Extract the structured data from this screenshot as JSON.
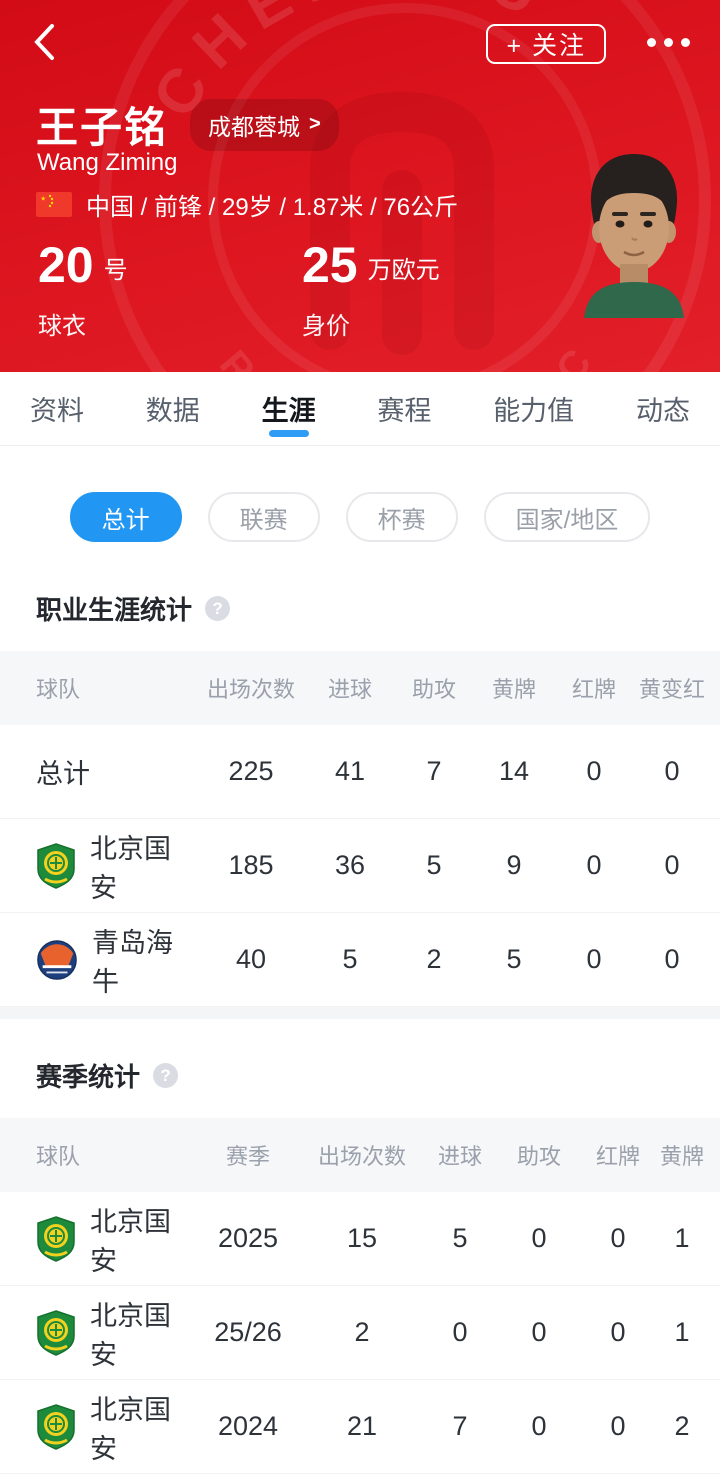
{
  "header": {
    "follow_button": "+ 关注",
    "player_name": "王子铭",
    "player_name_en": "Wang Ziming",
    "team_chip": "成都蓉城",
    "team_chip_arrow": ">",
    "info_line": "中国 / 前锋 / 29岁 / 1.87米 / 76公斤",
    "jersey_number": "20",
    "jersey_unit": "号",
    "jersey_label": "球衣",
    "value_number": "25",
    "value_unit": "万欧元",
    "value_label": "身价",
    "watermark_top": "CHENGDU",
    "watermark_bottom": "RONGCHENG FC"
  },
  "icons": {
    "help": "?"
  },
  "tabs": [
    {
      "label": "资料",
      "active": false
    },
    {
      "label": "数据",
      "active": false
    },
    {
      "label": "生涯",
      "active": true
    },
    {
      "label": "赛程",
      "active": false
    },
    {
      "label": "能力值",
      "active": false
    },
    {
      "label": "动态",
      "active": false
    }
  ],
  "filters": [
    {
      "label": "总计",
      "active": true
    },
    {
      "label": "联赛",
      "active": false
    },
    {
      "label": "杯赛",
      "active": false
    },
    {
      "label": "国家/地区",
      "active": false
    }
  ],
  "career": {
    "title": "职业生涯统计",
    "columns": [
      "球队",
      "出场次数",
      "进球",
      "助攻",
      "黄牌",
      "红牌",
      "黄变红"
    ],
    "rows": [
      {
        "team": "总计",
        "badge": null,
        "values": [
          225,
          41,
          7,
          14,
          0,
          0
        ]
      },
      {
        "team": "北京国安",
        "badge": "guoan",
        "values": [
          185,
          36,
          5,
          9,
          0,
          0
        ]
      },
      {
        "team": "青岛海牛",
        "badge": "hainiu",
        "values": [
          40,
          5,
          2,
          5,
          0,
          0
        ]
      }
    ]
  },
  "season": {
    "title": "赛季统计",
    "columns": [
      "球队",
      "赛季",
      "出场次数",
      "进球",
      "助攻",
      "红牌",
      "黄牌"
    ],
    "rows": [
      {
        "team": "北京国安",
        "badge": "guoan",
        "values": [
          "2025",
          15,
          5,
          0,
          0,
          1
        ]
      },
      {
        "team": "北京国安",
        "badge": "guoan",
        "values": [
          "25/26",
          2,
          0,
          0,
          0,
          1
        ]
      },
      {
        "team": "北京国安",
        "badge": "guoan",
        "values": [
          "2024",
          21,
          7,
          0,
          0,
          2
        ]
      }
    ]
  },
  "colors": {
    "header_red": "#dd1620",
    "accent_blue": "#2196f3",
    "table_header_bg": "#f6f7f9"
  }
}
